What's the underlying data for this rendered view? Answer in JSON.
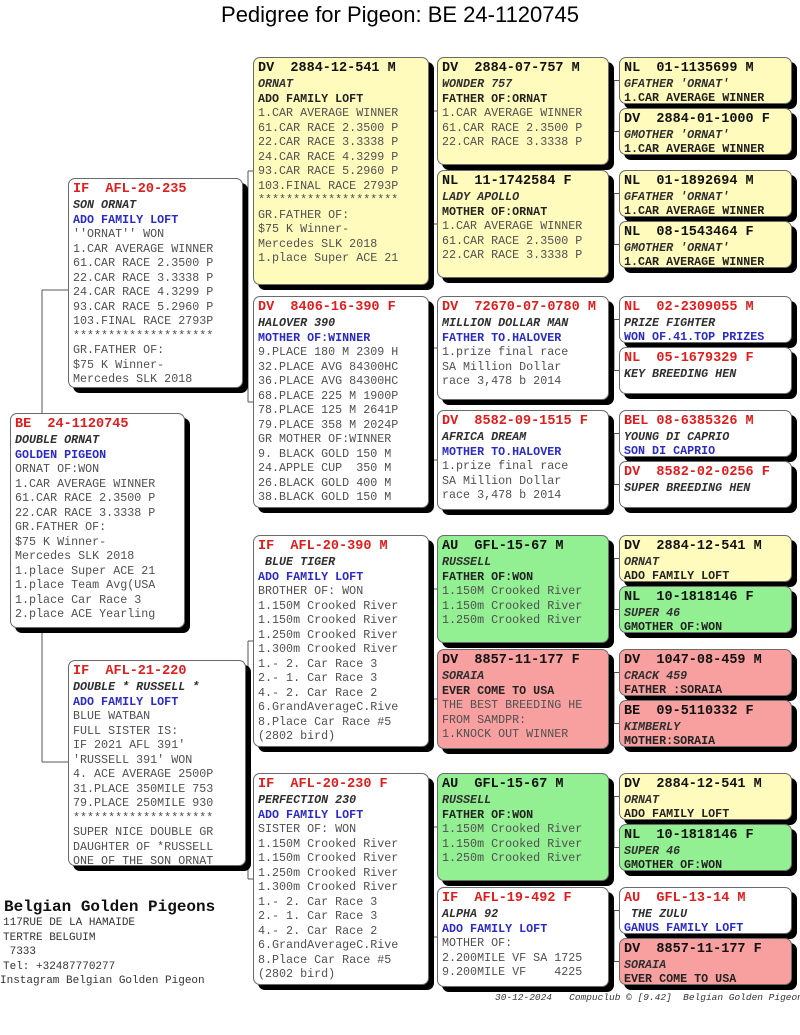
{
  "title": "Pedigree for Pigeon: BE  24-1120745",
  "colors": {
    "white": "#ffffff",
    "yellow": "#fffbbd",
    "green": "#92ef92",
    "red": "#f8a0a0",
    "header_red": "#e01c1c",
    "header_black": "#111111"
  },
  "pedigree": {
    "subject": {
      "bg": "white",
      "lines": [
        {
          "t": "BE  24-1120745",
          "s": "h"
        },
        {
          "t": "DOUBLE ORNAT",
          "s": "n"
        },
        {
          "t": "GOLDEN PIGEON",
          "s": "b"
        },
        {
          "t": "ORNAT OF:WON",
          "s": "g"
        },
        {
          "t": "1.CAR AVERAGE WINNER",
          "s": "g"
        },
        {
          "t": "61.CAR RACE 2.3500 P",
          "s": "g"
        },
        {
          "t": "22.CAR RACE 3.3338 P",
          "s": "g"
        },
        {
          "t": "GR.FATHER OF:",
          "s": "g"
        },
        {
          "t": "$75 K Winner-",
          "s": "g"
        },
        {
          "t": "Mercedes SLK 2018",
          "s": "g"
        },
        {
          "t": "1.place Super ACE 21",
          "s": "g"
        },
        {
          "t": "1.place Team Avg(USA",
          "s": "g"
        },
        {
          "t": "1.place Car Race 3",
          "s": "g"
        },
        {
          "t": "2.place ACE Yearling",
          "s": "g"
        }
      ]
    },
    "parents": [
      {
        "bg": "white",
        "lines": [
          {
            "t": "IF  AFL-20-235",
            "s": "h"
          },
          {
            "t": "SON ORNAT",
            "s": "n"
          },
          {
            "t": "ADO FAMILY LOFT",
            "s": "b"
          },
          {
            "t": "''ORNAT'' WON",
            "s": "g"
          },
          {
            "t": "1.CAR AVERAGE WINNER",
            "s": "g"
          },
          {
            "t": "61.CAR RACE 2.3500 P",
            "s": "g"
          },
          {
            "t": "22.CAR RACE 3.3338 P",
            "s": "g"
          },
          {
            "t": "24.CAR RACE 4.3299 P",
            "s": "g"
          },
          {
            "t": "93.CAR RACE 5.2960 P",
            "s": "g"
          },
          {
            "t": "103.FINAL RACE 2793P",
            "s": "g"
          },
          {
            "t": "********************",
            "s": "g"
          },
          {
            "t": "GR.FATHER OF:",
            "s": "g"
          },
          {
            "t": "$75 K Winner-",
            "s": "g"
          },
          {
            "t": "Mercedes SLK 2018",
            "s": "g"
          }
        ]
      },
      {
        "bg": "white",
        "lines": [
          {
            "t": "IF  AFL-21-220",
            "s": "h"
          },
          {
            "t": "DOUBLE * RUSSELL *",
            "s": "n"
          },
          {
            "t": "ADO FAMILY LOFT",
            "s": "b"
          },
          {
            "t": "BLUE WATBAN",
            "s": "g"
          },
          {
            "t": "FULL SISTER IS:",
            "s": "g"
          },
          {
            "t": "IF 2021 AFL 391'",
            "s": "g"
          },
          {
            "t": "'RUSSELL 391' WON",
            "s": "g"
          },
          {
            "t": "4. ACE AVERAGE 2500P",
            "s": "g"
          },
          {
            "t": "31.PLACE 350MILE 753",
            "s": "g"
          },
          {
            "t": "79.PLACE 250MILE 930",
            "s": "g"
          },
          {
            "t": "********************",
            "s": "g"
          },
          {
            "t": "SUPER NICE DOUBLE GR",
            "s": "g"
          },
          {
            "t": "DAUGHTER OF *RUSSELL",
            "s": "g"
          },
          {
            "t": "ONE OF THE SON ORNAT",
            "s": "g"
          }
        ]
      }
    ],
    "grandparents": [
      {
        "bg": "yellow",
        "lines": [
          {
            "t": "DV  2884-12-541 M",
            "s": "h"
          },
          {
            "t": "ORNAT",
            "s": "n"
          },
          {
            "t": "ADO FAMILY LOFT",
            "s": "k"
          },
          {
            "t": "1.CAR AVERAGE WINNER",
            "s": "g"
          },
          {
            "t": "61.CAR RACE 2.3500 P",
            "s": "g"
          },
          {
            "t": "22.CAR RACE 3.3338 P",
            "s": "g"
          },
          {
            "t": "24.CAR RACE 4.3299 P",
            "s": "g"
          },
          {
            "t": "93.CAR RACE 5.2960 P",
            "s": "g"
          },
          {
            "t": "103.FINAL RACE 2793P",
            "s": "g"
          },
          {
            "t": "********************",
            "s": "g"
          },
          {
            "t": "GR.FATHER OF:",
            "s": "g"
          },
          {
            "t": "$75 K Winner-",
            "s": "g"
          },
          {
            "t": "Mercedes SLK 2018",
            "s": "g"
          },
          {
            "t": "1.place Super ACE 21",
            "s": "g"
          }
        ]
      },
      {
        "bg": "white",
        "lines": [
          {
            "t": "DV  8406-16-390 F",
            "s": "h"
          },
          {
            "t": "HALOVER 390",
            "s": "n"
          },
          {
            "t": "MOTHER OF:WINNER",
            "s": "b"
          },
          {
            "t": "9.PLACE 180 M 2309 H",
            "s": "g"
          },
          {
            "t": "32.PLACE AVG 84300HC",
            "s": "g"
          },
          {
            "t": "36.PLACE AVG 84300HC",
            "s": "g"
          },
          {
            "t": "68.PLACE 225 M 1900P",
            "s": "g"
          },
          {
            "t": "78.PLACE 125 M 2641P",
            "s": "g"
          },
          {
            "t": "79.PLACE 358 M 2024P",
            "s": "g"
          },
          {
            "t": "GR MOTHER OF:WINNER",
            "s": "g"
          },
          {
            "t": "9. BLACK GOLD 150 M",
            "s": "g"
          },
          {
            "t": "24.APPLE CUP  350 M",
            "s": "g"
          },
          {
            "t": "26.BLACK GOLD 400 M",
            "s": "g"
          },
          {
            "t": "38.BLACK GOLD 150 M",
            "s": "g"
          }
        ]
      },
      {
        "bg": "white",
        "lines": [
          {
            "t": "IF  AFL-20-390 M",
            "s": "h"
          },
          {
            "t": " BLUE TIGER",
            "s": "n"
          },
          {
            "t": "ADO FAMILY LOFT",
            "s": "b"
          },
          {
            "t": "BROTHER OF: WON",
            "s": "g"
          },
          {
            "t": "1.150M Crooked River",
            "s": "g"
          },
          {
            "t": "1.150m Crooked River",
            "s": "g"
          },
          {
            "t": "1.250m Crooked River",
            "s": "g"
          },
          {
            "t": "1.300m Crooked River",
            "s": "g"
          },
          {
            "t": "1.- 2. Car Race 3",
            "s": "g"
          },
          {
            "t": "2.- 1. Car Race 3",
            "s": "g"
          },
          {
            "t": "4.- 2. Car Race 2",
            "s": "g"
          },
          {
            "t": "6.GrandAverageC.Rive",
            "s": "g"
          },
          {
            "t": "8.Place Car Race #5",
            "s": "g"
          },
          {
            "t": "(2802 bird)",
            "s": "g"
          }
        ]
      },
      {
        "bg": "white",
        "lines": [
          {
            "t": "IF  AFL-20-230 F",
            "s": "h"
          },
          {
            "t": "PERFECTION 230",
            "s": "n"
          },
          {
            "t": "ADO FAMILY LOFT",
            "s": "b"
          },
          {
            "t": "SISTER OF: WON",
            "s": "g"
          },
          {
            "t": "1.150M Crooked River",
            "s": "g"
          },
          {
            "t": "1.150m Crooked River",
            "s": "g"
          },
          {
            "t": "1.250m Crooked River",
            "s": "g"
          },
          {
            "t": "1.300m Crooked River",
            "s": "g"
          },
          {
            "t": "1.- 2. Car Race 3",
            "s": "g"
          },
          {
            "t": "2.- 1. Car Race 3",
            "s": "g"
          },
          {
            "t": "4.- 2. Car Race 2",
            "s": "g"
          },
          {
            "t": "6.GrandAverageC.Rive",
            "s": "g"
          },
          {
            "t": "8.Place Car Race #5",
            "s": "g"
          },
          {
            "t": "(2802 bird)",
            "s": "g"
          }
        ]
      }
    ],
    "great_grandparents": [
      {
        "bg": "yellow",
        "lines": [
          {
            "t": "DV  2884-07-757 M",
            "s": "h"
          },
          {
            "t": "WONDER 757",
            "s": "n"
          },
          {
            "t": "FATHER OF:ORNAT",
            "s": "k"
          },
          {
            "t": "1.CAR AVERAGE WINNER",
            "s": "g"
          },
          {
            "t": "61.CAR RACE 2.3500 P",
            "s": "g"
          },
          {
            "t": "22.CAR RACE 3.3338 P",
            "s": "g"
          }
        ]
      },
      {
        "bg": "yellow",
        "lines": [
          {
            "t": "NL  11-1742584 F",
            "s": "h"
          },
          {
            "t": "LADY APOLLO",
            "s": "n"
          },
          {
            "t": "MOTHER OF:ORNAT",
            "s": "k"
          },
          {
            "t": "1.CAR AVERAGE WINNER",
            "s": "g"
          },
          {
            "t": "61.CAR RACE 2.3500 P",
            "s": "g"
          },
          {
            "t": "22.CAR RACE 3.3338 P",
            "s": "g"
          }
        ]
      },
      {
        "bg": "white",
        "lines": [
          {
            "t": "DV  72670-07-0780 M",
            "s": "h"
          },
          {
            "t": "MILLION DOLLAR MAN",
            "s": "n"
          },
          {
            "t": "FATHER TO.HALOVER",
            "s": "b"
          },
          {
            "t": "1.prize final race",
            "s": "g"
          },
          {
            "t": "SA Million Dollar",
            "s": "g"
          },
          {
            "t": "race 3,478 b 2014",
            "s": "g"
          }
        ]
      },
      {
        "bg": "white",
        "lines": [
          {
            "t": "DV  8582-09-1515 F",
            "s": "h"
          },
          {
            "t": "AFRICA DREAM",
            "s": "n"
          },
          {
            "t": "MOTHER TO.HALOVER",
            "s": "b"
          },
          {
            "t": "1.prize final race",
            "s": "g"
          },
          {
            "t": "SA Million Dollar",
            "s": "g"
          },
          {
            "t": "race 3,478 b 2014",
            "s": "g"
          }
        ]
      },
      {
        "bg": "green",
        "lines": [
          {
            "t": "AU  GFL-15-67 M",
            "s": "h"
          },
          {
            "t": "RUSSELL",
            "s": "n"
          },
          {
            "t": "FATHER OF:WON",
            "s": "k"
          },
          {
            "t": "1.150M Crooked River",
            "s": "g"
          },
          {
            "t": "1.150m Crooked River",
            "s": "g"
          },
          {
            "t": "1.250m Crooked River",
            "s": "g"
          }
        ]
      },
      {
        "bg": "red",
        "lines": [
          {
            "t": "DV  8857-11-177 F",
            "s": "h"
          },
          {
            "t": "SORAIA",
            "s": "n"
          },
          {
            "t": "EVER COME TO USA",
            "s": "k"
          },
          {
            "t": "THE BEST BREEDING HE",
            "s": "g"
          },
          {
            "t": "FROM SAMDPR:",
            "s": "g"
          },
          {
            "t": "1.KNOCK OUT WINNER",
            "s": "g"
          }
        ]
      },
      {
        "bg": "green",
        "lines": [
          {
            "t": "AU  GFL-15-67 M",
            "s": "h"
          },
          {
            "t": "RUSSELL",
            "s": "n"
          },
          {
            "t": "FATHER OF:WON",
            "s": "k"
          },
          {
            "t": "1.150M Crooked River",
            "s": "g"
          },
          {
            "t": "1.150m Crooked River",
            "s": "g"
          },
          {
            "t": "1.250m Crooked River",
            "s": "g"
          }
        ]
      },
      {
        "bg": "white",
        "lines": [
          {
            "t": "IF  AFL-19-492 F",
            "s": "h"
          },
          {
            "t": "ALPHA 92",
            "s": "n"
          },
          {
            "t": "ADO FAMILY LOFT",
            "s": "b"
          },
          {
            "t": "MOTHER OF:",
            "s": "g"
          },
          {
            "t": "2.200MILE VF SA 1725",
            "s": "g"
          },
          {
            "t": "9.200MILE VF    4225",
            "s": "g"
          }
        ]
      }
    ],
    "great_great_grandparents": [
      {
        "bg": "yellow",
        "lines": [
          {
            "t": "NL  01-1135699 M",
            "s": "h"
          },
          {
            "t": "GFATHER 'ORNAT'",
            "s": "n"
          },
          {
            "t": "1.CAR AVERAGE WINNER",
            "s": "k"
          }
        ]
      },
      {
        "bg": "yellow",
        "lines": [
          {
            "t": "DV  2884-01-1000 F",
            "s": "h"
          },
          {
            "t": "GMOTHER 'ORNAT'",
            "s": "n"
          },
          {
            "t": "1.CAR AVERAGE WINNER",
            "s": "k"
          }
        ]
      },
      {
        "bg": "yellow",
        "lines": [
          {
            "t": "NL  01-1892694 M",
            "s": "h"
          },
          {
            "t": "GFATHER 'ORNAT'",
            "s": "n"
          },
          {
            "t": "1.CAR AVERAGE WINNER",
            "s": "k"
          }
        ]
      },
      {
        "bg": "yellow",
        "lines": [
          {
            "t": "NL  08-1543464 F",
            "s": "h"
          },
          {
            "t": "GMOTHER 'ORNAT'",
            "s": "n"
          },
          {
            "t": "1.CAR AVERAGE WINNER",
            "s": "k"
          }
        ]
      },
      {
        "bg": "white",
        "lines": [
          {
            "t": "NL  02-2309055 M",
            "s": "h"
          },
          {
            "t": "PRIZE FIGHTER",
            "s": "n"
          },
          {
            "t": "WON OF.41.TOP PRIZES",
            "s": "b"
          }
        ]
      },
      {
        "bg": "white",
        "lines": [
          {
            "t": "NL  05-1679329 F",
            "s": "h"
          },
          {
            "t": "KEY BREEDING HEN",
            "s": "n"
          }
        ]
      },
      {
        "bg": "white",
        "lines": [
          {
            "t": "BEL 08-6385326 M",
            "s": "h"
          },
          {
            "t": "YOUNG DI CAPRIO",
            "s": "n"
          },
          {
            "t": "SON DI CAPRIO",
            "s": "b"
          }
        ]
      },
      {
        "bg": "white",
        "lines": [
          {
            "t": "DV  8582-02-0256 F",
            "s": "h"
          },
          {
            "t": "SUPER BREEDING HEN",
            "s": "n"
          }
        ]
      },
      {
        "bg": "yellow",
        "lines": [
          {
            "t": "DV  2884-12-541 M",
            "s": "h"
          },
          {
            "t": "ORNAT",
            "s": "n"
          },
          {
            "t": "ADO FAMILY LOFT",
            "s": "k"
          }
        ]
      },
      {
        "bg": "green",
        "lines": [
          {
            "t": "NL  10-1818146 F",
            "s": "h"
          },
          {
            "t": "SUPER 46",
            "s": "n"
          },
          {
            "t": "GMOTHER OF:WON",
            "s": "k"
          }
        ]
      },
      {
        "bg": "red",
        "lines": [
          {
            "t": "DV  1047-08-459 M",
            "s": "h"
          },
          {
            "t": "CRACK 459",
            "s": "n"
          },
          {
            "t": "FATHER :SORAIA",
            "s": "k"
          }
        ]
      },
      {
        "bg": "red",
        "lines": [
          {
            "t": "BE  09-5110332 F",
            "s": "h"
          },
          {
            "t": "KIMBERLY",
            "s": "n"
          },
          {
            "t": "MOTHER:SORAIA",
            "s": "k"
          }
        ]
      },
      {
        "bg": "yellow",
        "lines": [
          {
            "t": "DV  2884-12-541 M",
            "s": "h"
          },
          {
            "t": "ORNAT",
            "s": "n"
          },
          {
            "t": "ADO FAMILY LOFT",
            "s": "k"
          }
        ]
      },
      {
        "bg": "green",
        "lines": [
          {
            "t": "NL  10-1818146 F",
            "s": "h"
          },
          {
            "t": "SUPER 46",
            "s": "n"
          },
          {
            "t": "GMOTHER OF:WON",
            "s": "k"
          }
        ]
      },
      {
        "bg": "white",
        "lines": [
          {
            "t": "AU  GFL-13-14 M",
            "s": "h"
          },
          {
            "t": " THE ZULU",
            "s": "n"
          },
          {
            "t": "GANUS FAMILY LOFT",
            "s": "b"
          }
        ]
      },
      {
        "bg": "red",
        "lines": [
          {
            "t": "DV  8857-11-177 F",
            "s": "h"
          },
          {
            "t": "SORAIA",
            "s": "n"
          },
          {
            "t": "EVER COME TO USA",
            "s": "k"
          }
        ]
      }
    ]
  },
  "breeder": {
    "name": "Belgian Golden Pigeons",
    "address": [
      "117RUE DE LA HAMAIDE",
      "TERTRE BELGUIM",
      " 7333",
      "Tel: +32487770277"
    ],
    "instagram": "Instagram Belgian Golden Pigeon"
  },
  "footer": {
    "date": "30-12-2024",
    "software": "Compuclub © [9.42]",
    "owner": "Belgian Golden Pigeons"
  }
}
